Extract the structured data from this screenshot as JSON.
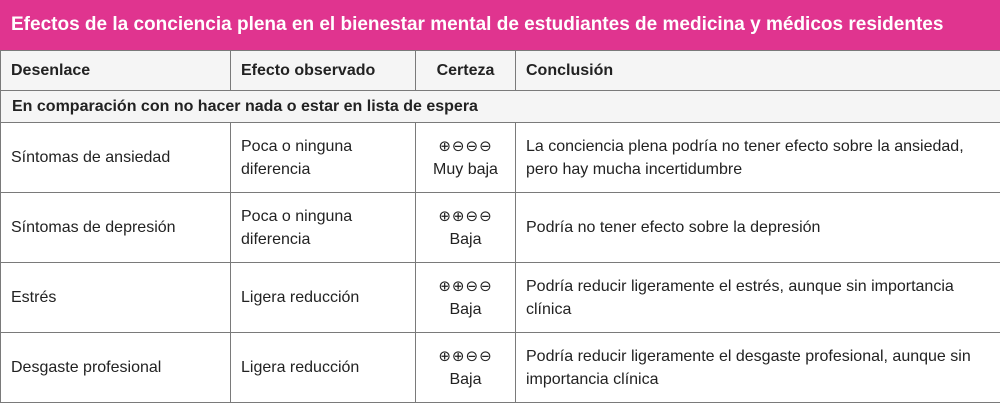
{
  "title": "Efectos de la conciencia plena en el bienestar mental de estudiantes de medicina y médicos residentes",
  "headers": {
    "outcome": "Desenlace",
    "effect": "Efecto observado",
    "certainty": "Certeza",
    "conclusion": "Conclusión"
  },
  "group_label": "En comparación con no hacer nada o estar en lista de espera",
  "rows": [
    {
      "outcome": "Síntomas de ansiedad",
      "effect": "Poca o ninguna diferencia",
      "certainty_symbols": "⊕⊖⊖⊖",
      "certainty_level": "Muy baja",
      "conclusion": "La conciencia plena podría no tener efecto sobre la ansiedad, pero hay mucha incertidumbre"
    },
    {
      "outcome": "Síntomas de depresión",
      "effect": "Poca o ninguna diferencia",
      "certainty_symbols": "⊕⊕⊖⊖",
      "certainty_level": "Baja",
      "conclusion": "Podría no tener efecto sobre la depresión"
    },
    {
      "outcome": "Estrés",
      "effect": "Ligera reducción",
      "certainty_symbols": "⊕⊕⊖⊖",
      "certainty_level": "Baja",
      "conclusion": "Podría reducir ligeramente el estrés, aunque sin importancia clínica"
    },
    {
      "outcome": "Desgaste profesional",
      "effect": "Ligera reducción",
      "certainty_symbols": "⊕⊕⊖⊖",
      "certainty_level": "Baja",
      "conclusion": "Podría reducir  ligeramente el desgaste profesional, aunque sin importancia clínica"
    }
  ],
  "colors": {
    "title_bar": "#e0348f",
    "title_text": "#ffffff",
    "border": "#7a7a7a"
  }
}
